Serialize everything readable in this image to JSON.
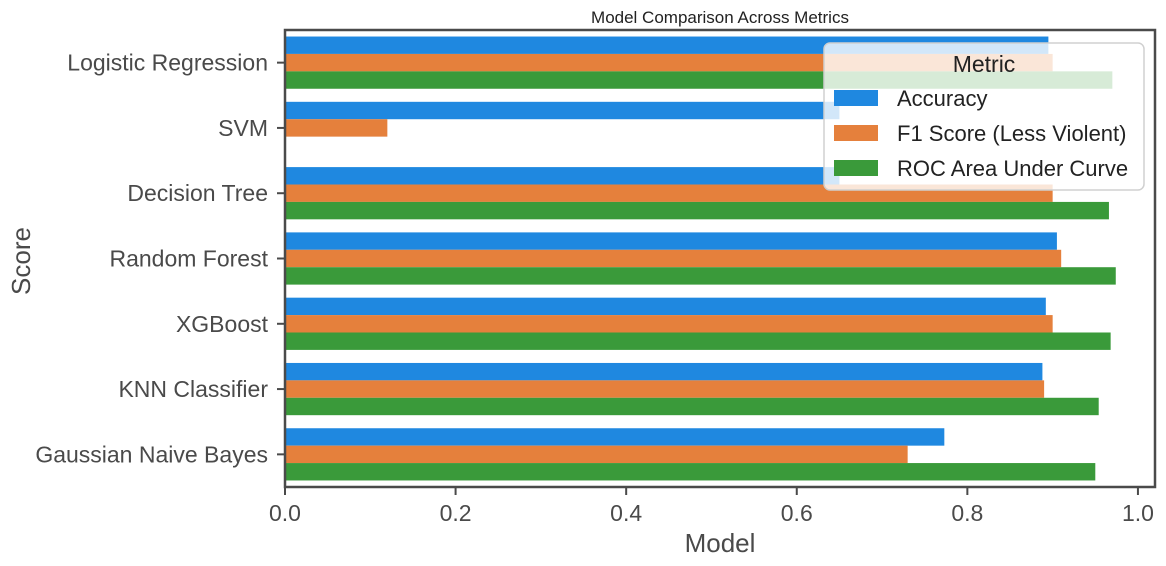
{
  "chart_data": {
    "type": "bar",
    "orientation": "horizontal",
    "title": "Model Comparison Across Metrics",
    "xlabel": "Model",
    "ylabel": "Score",
    "xlim": [
      0,
      1.02
    ],
    "xticks": [
      "0.0",
      "0.2",
      "0.4",
      "0.6",
      "0.8",
      "1.0"
    ],
    "categories": [
      "Logistic Regression",
      "SVM",
      "Decision Tree",
      "Random Forest",
      "XGBoost",
      "KNN Classifier",
      "Gaussian Naive Bayes"
    ],
    "series": [
      {
        "name": "Accuracy",
        "color": "#1f88e0",
        "values": [
          0.895,
          0.65,
          0.65,
          0.905,
          0.892,
          0.888,
          0.773
        ]
      },
      {
        "name": "F1 Score (Less Violent)",
        "color": "#e5803c",
        "values": [
          0.9,
          0.12,
          0.9,
          0.91,
          0.9,
          0.89,
          0.73
        ]
      },
      {
        "name": "ROC Area Under Curve",
        "color": "#3a9a3a",
        "values": [
          0.97,
          0,
          0.966,
          0.974,
          0.968,
          0.954,
          0.95
        ]
      }
    ],
    "legend": {
      "title": "Metric",
      "position": "top-right"
    },
    "grid": false
  }
}
